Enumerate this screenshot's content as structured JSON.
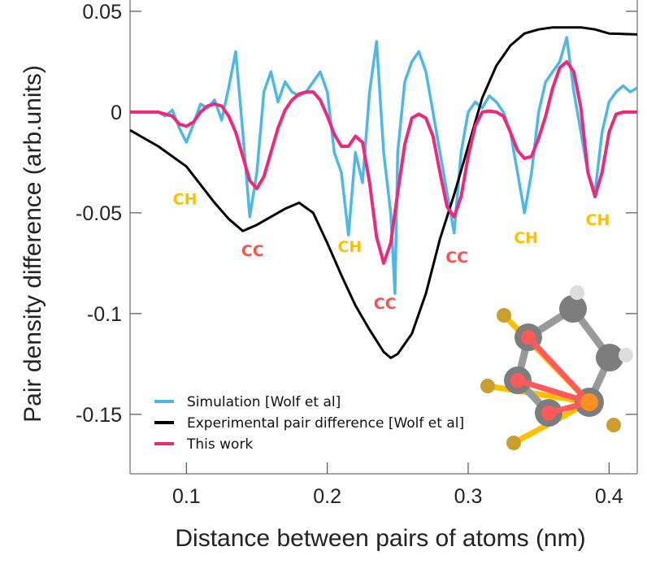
{
  "chart_data": {
    "type": "line",
    "title": "",
    "xlabel": "Distance between pairs of atoms (nm)",
    "ylabel": "Pair density difference (arb.units)",
    "xlim": [
      0.06,
      0.42
    ],
    "ylim": [
      -0.1795,
      0.0556
    ],
    "xticks": [
      0.1,
      0.2,
      0.3,
      0.4
    ],
    "xtick_labels": [
      "0.1",
      "0.2",
      "0.3",
      "0.4"
    ],
    "yticks": [
      0.05,
      0,
      -0.05,
      -0.1,
      -0.15
    ],
    "ytick_labels": [
      "0.05",
      "0",
      "-0.05",
      "-0.1",
      "-0.15"
    ],
    "grid": false,
    "legend_position": "bottom-left",
    "series": [
      {
        "name": "Simulation [Wolf et al]",
        "color": "#4DB8E8",
        "x": [
          0.06,
          0.065,
          0.07,
          0.075,
          0.08,
          0.085,
          0.09,
          0.095,
          0.1,
          0.105,
          0.11,
          0.115,
          0.12,
          0.125,
          0.13,
          0.135,
          0.14,
          0.145,
          0.15,
          0.155,
          0.16,
          0.165,
          0.17,
          0.175,
          0.18,
          0.185,
          0.19,
          0.195,
          0.2,
          0.205,
          0.21,
          0.215,
          0.22,
          0.225,
          0.23,
          0.235,
          0.24,
          0.245,
          0.248,
          0.25,
          0.255,
          0.26,
          0.265,
          0.27,
          0.275,
          0.28,
          0.285,
          0.29,
          0.295,
          0.3,
          0.305,
          0.31,
          0.315,
          0.32,
          0.325,
          0.33,
          0.335,
          0.34,
          0.345,
          0.35,
          0.355,
          0.36,
          0.365,
          0.37,
          0.375,
          0.38,
          0.385,
          0.39,
          0.395,
          0.4,
          0.405,
          0.41,
          0.415,
          0.42
        ],
        "y": [
          0,
          0,
          0,
          0,
          0,
          -0.002,
          0.001,
          -0.008,
          -0.015,
          -0.006,
          0.004,
          0.002,
          0.006,
          -0.004,
          0.012,
          0.03,
          -0.01,
          -0.052,
          -0.03,
          0.01,
          0.02,
          0.005,
          0.015,
          0.01,
          0.008,
          0.01,
          0.015,
          0.02,
          0.01,
          -0.02,
          -0.03,
          -0.061,
          -0.02,
          -0.035,
          0.01,
          0.035,
          -0.02,
          -0.05,
          -0.09,
          -0.02,
          0.015,
          0.025,
          0.03,
          0.02,
          0.0,
          -0.02,
          -0.04,
          -0.06,
          -0.02,
          0.0,
          0.005,
          0.002,
          0.008,
          0.005,
          0.0,
          -0.01,
          -0.03,
          -0.05,
          -0.03,
          0.0,
          0.015,
          0.02,
          0.025,
          0.037,
          0.01,
          -0.01,
          -0.03,
          -0.04,
          -0.01,
          0.005,
          0.01,
          0.013,
          0.01,
          0.012
        ]
      },
      {
        "name": "Experimental pair difference [Wolf et al]",
        "color": "#000000",
        "x": [
          0.06,
          0.08,
          0.1,
          0.12,
          0.13,
          0.14,
          0.15,
          0.16,
          0.17,
          0.18,
          0.19,
          0.2,
          0.21,
          0.22,
          0.23,
          0.24,
          0.245,
          0.25,
          0.26,
          0.27,
          0.28,
          0.29,
          0.3,
          0.31,
          0.32,
          0.33,
          0.34,
          0.35,
          0.36,
          0.38,
          0.39,
          0.4,
          0.42
        ],
        "y": [
          -0.009,
          -0.017,
          -0.027,
          -0.045,
          -0.053,
          -0.059,
          -0.056,
          -0.052,
          -0.048,
          -0.045,
          -0.05,
          -0.065,
          -0.081,
          -0.096,
          -0.108,
          -0.119,
          -0.122,
          -0.12,
          -0.11,
          -0.09,
          -0.063,
          -0.041,
          -0.017,
          0.007,
          0.023,
          0.033,
          0.039,
          0.041,
          0.042,
          0.042,
          0.041,
          0.039,
          0.0385
        ]
      },
      {
        "name": "This work",
        "color": "#F0287A",
        "x": [
          0.06,
          0.08,
          0.09,
          0.095,
          0.1,
          0.105,
          0.11,
          0.115,
          0.12,
          0.125,
          0.13,
          0.135,
          0.14,
          0.145,
          0.15,
          0.155,
          0.16,
          0.165,
          0.17,
          0.175,
          0.18,
          0.185,
          0.19,
          0.195,
          0.2,
          0.205,
          0.21,
          0.215,
          0.22,
          0.225,
          0.23,
          0.235,
          0.24,
          0.245,
          0.25,
          0.255,
          0.26,
          0.265,
          0.27,
          0.275,
          0.28,
          0.285,
          0.29,
          0.295,
          0.3,
          0.305,
          0.31,
          0.315,
          0.32,
          0.325,
          0.33,
          0.335,
          0.34,
          0.345,
          0.35,
          0.355,
          0.36,
          0.365,
          0.37,
          0.375,
          0.38,
          0.385,
          0.39,
          0.395,
          0.4,
          0.405,
          0.41,
          0.42
        ],
        "y": [
          0,
          0,
          -0.002,
          -0.006,
          -0.007,
          -0.005,
          0,
          0.003,
          0.004,
          0.003,
          -0.002,
          -0.01,
          -0.022,
          -0.034,
          -0.038,
          -0.032,
          -0.02,
          -0.008,
          0.001,
          0.006,
          0.009,
          0.01,
          0.01,
          0.006,
          -0.002,
          -0.011,
          -0.017,
          -0.017,
          -0.012,
          -0.015,
          -0.035,
          -0.062,
          -0.075,
          -0.065,
          -0.04,
          -0.016,
          -0.003,
          -0.001,
          -0.003,
          -0.012,
          -0.03,
          -0.047,
          -0.052,
          -0.042,
          -0.022,
          -0.007,
          0,
          0.0005,
          0,
          -0.002,
          -0.01,
          -0.019,
          -0.023,
          -0.022,
          -0.013,
          -0.002,
          0.012,
          0.022,
          0.025,
          0.02,
          0.002,
          -0.03,
          -0.042,
          -0.03,
          -0.01,
          -0.001,
          0,
          0
        ]
      }
    ],
    "annotations": [
      {
        "text": "CH",
        "x": 0.099,
        "y": -0.043,
        "color": "#FFC000"
      },
      {
        "text": "CC",
        "x": 0.147,
        "y": -0.0686,
        "color": "#FF5050"
      },
      {
        "text": "CH",
        "x": 0.216,
        "y": -0.0665,
        "color": "#FFC000"
      },
      {
        "text": "CC",
        "x": 0.241,
        "y": -0.0948,
        "color": "#FF5050"
      },
      {
        "text": "CC",
        "x": 0.292,
        "y": -0.0718,
        "color": "#FF5050"
      },
      {
        "text": "CH",
        "x": 0.341,
        "y": -0.0621,
        "color": "#FFC000"
      },
      {
        "text": "CH",
        "x": 0.392,
        "y": -0.0532,
        "color": "#FFC000"
      }
    ]
  }
}
